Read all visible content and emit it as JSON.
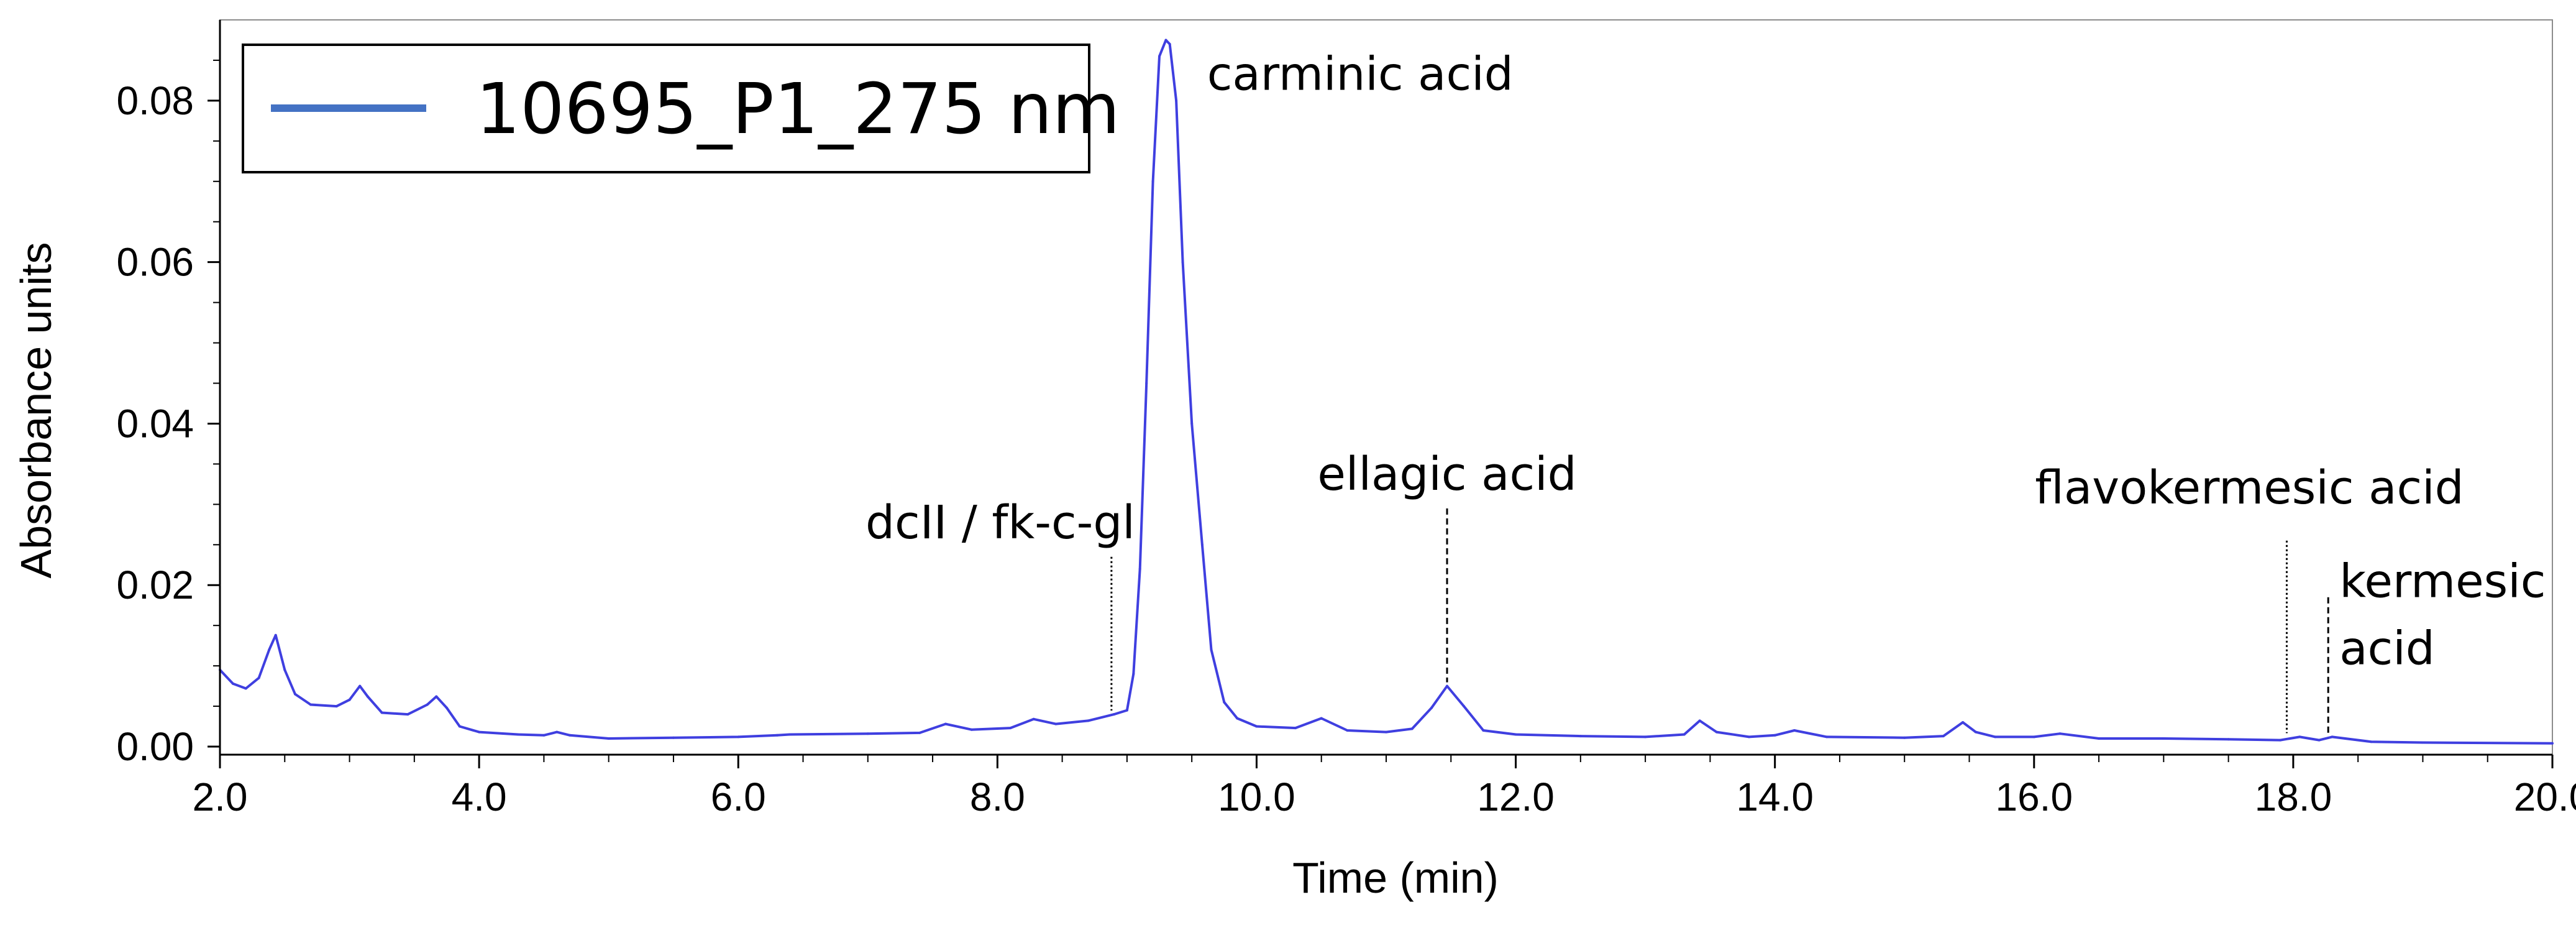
{
  "chart_data": {
    "type": "line",
    "title": "",
    "xlabel": "Time (min)",
    "ylabel": "Absorbance units",
    "xlim": [
      2.0,
      20.0
    ],
    "ylim": [
      -0.001,
      0.09
    ],
    "x_ticks": [
      {
        "value": 2.0,
        "label": "2.0"
      },
      {
        "value": 4.0,
        "label": "4.0"
      },
      {
        "value": 6.0,
        "label": "6.0"
      },
      {
        "value": 8.0,
        "label": "8.0"
      },
      {
        "value": 10.0,
        "label": "10.0"
      },
      {
        "value": 12.0,
        "label": "12.0"
      },
      {
        "value": 14.0,
        "label": "14.0"
      },
      {
        "value": 16.0,
        "label": "16.0"
      },
      {
        "value": 18.0,
        "label": "18.0"
      },
      {
        "value": 20.0,
        "label": "20.0"
      }
    ],
    "y_ticks": [
      {
        "value": 0.0,
        "label": "0.00"
      },
      {
        "value": 0.02,
        "label": "0.02"
      },
      {
        "value": 0.04,
        "label": "0.04"
      },
      {
        "value": 0.06,
        "label": "0.06"
      },
      {
        "value": 0.08,
        "label": "0.08"
      }
    ],
    "grid": false,
    "legend_position": "top-left",
    "series": [
      {
        "name": "10695_P1_275 nm",
        "color": "#3f3fe0",
        "legend_color": "#4472c4",
        "x": [
          2.0,
          2.1,
          2.2,
          2.3,
          2.38,
          2.43,
          2.5,
          2.58,
          2.7,
          2.9,
          3.0,
          3.08,
          3.14,
          3.25,
          3.45,
          3.6,
          3.67,
          3.75,
          3.85,
          4.0,
          4.3,
          4.5,
          4.6,
          4.7,
          5.0,
          5.5,
          6.0,
          6.3,
          6.4,
          7.0,
          7.4,
          7.6,
          7.8,
          8.1,
          8.28,
          8.45,
          8.7,
          8.9,
          9.0,
          9.05,
          9.1,
          9.15,
          9.2,
          9.25,
          9.3,
          9.33,
          9.38,
          9.43,
          9.5,
          9.58,
          9.65,
          9.75,
          9.85,
          10.0,
          10.3,
          10.5,
          10.7,
          11.0,
          11.2,
          11.35,
          11.47,
          11.6,
          11.75,
          12.0,
          12.5,
          13.0,
          13.3,
          13.42,
          13.55,
          13.8,
          14.0,
          14.15,
          14.4,
          15.0,
          15.3,
          15.45,
          15.55,
          15.7,
          16.0,
          16.2,
          16.5,
          17.0,
          17.5,
          17.9,
          18.05,
          18.2,
          18.3,
          18.6,
          19.0,
          20.0
        ],
        "values": [
          0.0095,
          0.0078,
          0.0072,
          0.0085,
          0.012,
          0.0138,
          0.0095,
          0.0065,
          0.0052,
          0.005,
          0.0058,
          0.0075,
          0.0062,
          0.0042,
          0.004,
          0.0052,
          0.0062,
          0.0048,
          0.0025,
          0.0018,
          0.0015,
          0.0014,
          0.0018,
          0.0014,
          0.001,
          0.0011,
          0.0012,
          0.0014,
          0.0015,
          0.0016,
          0.0017,
          0.0028,
          0.0021,
          0.0023,
          0.0034,
          0.0028,
          0.0032,
          0.004,
          0.0045,
          0.009,
          0.022,
          0.045,
          0.07,
          0.0855,
          0.0875,
          0.087,
          0.08,
          0.06,
          0.04,
          0.025,
          0.012,
          0.0055,
          0.0035,
          0.0025,
          0.0023,
          0.0035,
          0.002,
          0.0018,
          0.0022,
          0.0048,
          0.0075,
          0.005,
          0.002,
          0.0015,
          0.0013,
          0.0012,
          0.0015,
          0.0032,
          0.0018,
          0.0012,
          0.0014,
          0.002,
          0.0012,
          0.0011,
          0.0013,
          0.003,
          0.0018,
          0.0012,
          0.0012,
          0.0016,
          0.001,
          0.001,
          0.0009,
          0.0008,
          0.0012,
          0.0008,
          0.0012,
          0.0006,
          0.0005,
          0.0004
        ]
      }
    ],
    "annotations": [
      {
        "label": "carminic acid",
        "lines": [
          "carminic acid"
        ],
        "x": 9.33,
        "y": 0.0875,
        "style": "none",
        "anchor": "right-of-peak"
      },
      {
        "label": "dcII / fk-c-gl",
        "lines": [
          "dcII / fk-c-gl"
        ],
        "x": 8.88,
        "y": 0.004,
        "style": "dotted",
        "line_top": 0.0235
      },
      {
        "label": "ellagic acid",
        "lines": [
          "ellagic acid"
        ],
        "x": 11.47,
        "y": 0.0075,
        "style": "dashed",
        "line_top": 0.0295
      },
      {
        "label": "flavokermesic acid",
        "lines": [
          "flavokermesic acid"
        ],
        "x": 17.95,
        "y": 0.0012,
        "style": "dotted",
        "line_top": 0.0255
      },
      {
        "label": "kermesic acid",
        "lines": [
          "kermesic",
          "acid"
        ],
        "x": 18.27,
        "y": 0.0012,
        "style": "dashed",
        "line_top": 0.0185
      }
    ]
  }
}
